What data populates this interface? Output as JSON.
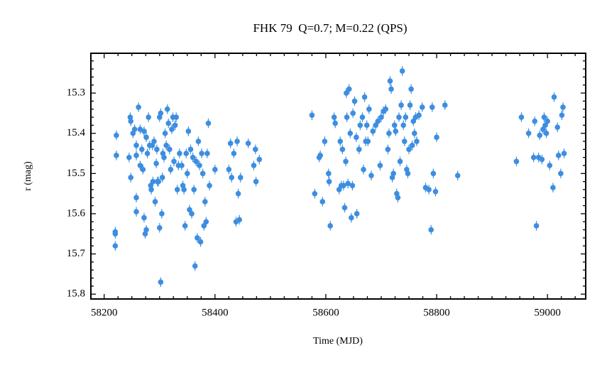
{
  "chart_data": {
    "type": "scatter",
    "title": "FHK 79  Q=0.7; M=0.22 (QPS)",
    "xlabel": "Time (MJD)",
    "ylabel": "r (mag)",
    "color": "#3d8ee0",
    "x": [
      58220,
      58220,
      58220,
      58222,
      58222,
      58245,
      58247,
      58248,
      58248,
      58252,
      58255,
      58258,
      58258,
      58258,
      58258,
      58262,
      58265,
      58265,
      58268,
      58270,
      58272,
      58272,
      58274,
      58276,
      58276,
      58278,
      58280,
      58282,
      58284,
      58285,
      58287,
      58288,
      58290,
      58292,
      58294,
      58295,
      58296,
      58298,
      58300,
      58300,
      58302,
      58302,
      58304,
      58305,
      58306,
      58308,
      58310,
      58312,
      58314,
      58316,
      58318,
      58320,
      58322,
      58324,
      58326,
      58328,
      58330,
      58332,
      58334,
      58336,
      58340,
      58342,
      58344,
      58346,
      58348,
      58350,
      58352,
      58354,
      58356,
      58358,
      58360,
      58362,
      58364,
      58366,
      58368,
      58370,
      58372,
      58374,
      58376,
      58378,
      58380,
      58382,
      58384,
      58386,
      58388,
      58390,
      58400,
      58425,
      58428,
      58430,
      58434,
      58438,
      58440,
      58442,
      58444,
      58446,
      58460,
      58470,
      58473,
      58474,
      58480,
      58575,
      58580,
      58588,
      58590,
      58594,
      58598,
      58605,
      58606,
      58608,
      58615,
      58617,
      58624,
      58626,
      58628,
      58630,
      58632,
      58634,
      58636,
      58637,
      58638,
      58640,
      58642,
      58644,
      58646,
      58648,
      58649,
      58652,
      58655,
      58656,
      58660,
      58662,
      58666,
      58668,
      58670,
      58672,
      58674,
      58676,
      58678,
      58682,
      58685,
      58690,
      58694,
      58698,
      58700,
      58704,
      58708,
      58712,
      58714,
      58716,
      58718,
      58720,
      58722,
      58724,
      58726,
      58728,
      58730,
      58732,
      58734,
      58736,
      58738,
      58740,
      58742,
      58744,
      58746,
      58748,
      58750,
      58752,
      58754,
      58756,
      58758,
      58760,
      58762,
      58764,
      58768,
      58774,
      58780,
      58786,
      58790,
      58792,
      58794,
      58798,
      58800,
      58815,
      58838,
      58944,
      58953,
      58966,
      58975,
      58977,
      58980,
      58984,
      58986,
      58990,
      58992,
      58994,
      58996,
      58998,
      59000,
      59004,
      59010,
      59012,
      59018,
      59020,
      59024,
      59026,
      59028,
      59030
    ],
    "y": [
      15.65,
      15.645,
      15.68,
      15.405,
      15.455,
      15.46,
      15.36,
      15.37,
      15.51,
      15.4,
      15.39,
      15.56,
      15.595,
      15.43,
      15.455,
      15.335,
      15.48,
      15.39,
      15.44,
      15.49,
      15.395,
      15.61,
      15.65,
      15.64,
      15.41,
      15.45,
      15.36,
      15.43,
      15.53,
      15.54,
      15.43,
      15.52,
      15.42,
      15.57,
      15.475,
      15.44,
      15.52,
      15.52,
      15.635,
      15.36,
      15.35,
      15.77,
      15.6,
      15.51,
      15.45,
      15.46,
      15.4,
      15.43,
      15.34,
      15.375,
      15.44,
      15.49,
      15.39,
      15.36,
      15.47,
      15.38,
      15.36,
      15.54,
      15.48,
      15.45,
      15.48,
      15.53,
      15.54,
      15.63,
      15.45,
      15.5,
      15.395,
      15.59,
      15.44,
      15.6,
      15.46,
      15.54,
      15.73,
      15.47,
      15.66,
      15.42,
      15.48,
      15.67,
      15.45,
      15.5,
      15.63,
      15.57,
      15.62,
      15.45,
      15.375,
      15.53,
      15.49,
      15.49,
      15.425,
      15.51,
      15.45,
      15.62,
      15.42,
      15.55,
      15.615,
      15.51,
      15.425,
      15.48,
      15.44,
      15.52,
      15.465,
      15.355,
      15.55,
      15.46,
      15.455,
      15.57,
      15.42,
      15.5,
      15.52,
      15.63,
      15.36,
      15.375,
      15.54,
      15.42,
      15.53,
      15.44,
      15.53,
      15.585,
      15.47,
      15.3,
      15.36,
      15.525,
      15.29,
      15.4,
      15.61,
      15.53,
      15.35,
      15.32,
      15.41,
      15.6,
      15.44,
      15.38,
      15.36,
      15.49,
      15.31,
      15.42,
      15.38,
      15.42,
      15.34,
      15.505,
      15.395,
      15.38,
      15.37,
      15.48,
      15.36,
      15.345,
      15.34,
      15.44,
      15.4,
      15.27,
      15.29,
      15.51,
      15.5,
      15.38,
      15.395,
      15.55,
      15.56,
      15.36,
      15.47,
      15.33,
      15.245,
      15.38,
      15.42,
      15.36,
      15.49,
      15.5,
      15.44,
      15.33,
      15.29,
      15.43,
      15.37,
      15.4,
      15.36,
      15.42,
      15.355,
      15.335,
      15.535,
      15.54,
      15.64,
      15.335,
      15.5,
      15.545,
      15.41,
      15.33,
      15.505,
      15.47,
      15.36,
      15.4,
      15.46,
      15.37,
      15.63,
      15.46,
      15.405,
      15.465,
      15.39,
      15.36,
      15.38,
      15.4,
      15.37,
      15.48,
      15.535,
      15.31,
      15.385,
      15.455,
      15.5,
      15.355,
      15.335,
      15.45
    ],
    "yerr": 0.012,
    "xlim": [
      58176,
      59069
    ],
    "ylim": [
      15.812,
      15.201
    ],
    "xticks": [
      58200,
      58400,
      58600,
      58800,
      59000
    ],
    "yticks": [
      15.3,
      15.4,
      15.5,
      15.6,
      15.7,
      15.8
    ],
    "xminorticks": [
      58225,
      58250,
      58275,
      58300,
      58325,
      58350,
      58375,
      58425,
      58450,
      58475,
      58500,
      58525,
      58550,
      58575,
      58625,
      58650,
      58675,
      58700,
      58725,
      58750,
      58775,
      58825,
      58850,
      58875,
      58900,
      58925,
      58950,
      58975,
      59025,
      59050
    ],
    "yminorticks": [
      15.22,
      15.24,
      15.26,
      15.28,
      15.32,
      15.34,
      15.36,
      15.38,
      15.42,
      15.44,
      15.46,
      15.48,
      15.52,
      15.54,
      15.56,
      15.58,
      15.62,
      15.64,
      15.66,
      15.68,
      15.72,
      15.74,
      15.76,
      15.78
    ]
  }
}
